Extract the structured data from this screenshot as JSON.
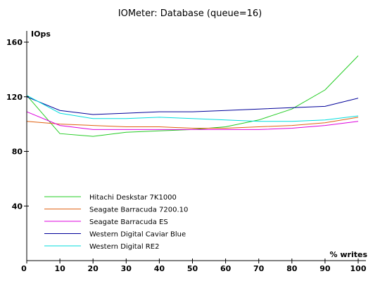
{
  "chart_data": {
    "type": "line",
    "title": "IOMeter: Database (queue=16)",
    "xlabel": "% writes",
    "ylabel": "IOps",
    "x": [
      0,
      10,
      20,
      30,
      40,
      50,
      60,
      70,
      80,
      90,
      100
    ],
    "xlim": [
      0,
      100
    ],
    "ylim": [
      0,
      160
    ],
    "xticks": [
      "0",
      "10",
      "20",
      "30",
      "40",
      "50",
      "60",
      "70",
      "80",
      "90",
      "100"
    ],
    "yticks": [
      {
        "value": 160,
        "label": "160"
      },
      {
        "value": 120,
        "label": "120"
      },
      {
        "value": 80,
        "label": "80"
      },
      {
        "value": 40,
        "label": "40"
      }
    ],
    "grid": false,
    "legend_position": "bottom-left",
    "series": [
      {
        "name": "Hitachi Deskstar 7K1000",
        "color": "#22cc22",
        "values": [
          121,
          93,
          91,
          94,
          95,
          96,
          98,
          103,
          111,
          125,
          150
        ]
      },
      {
        "name": "Seagate Barracuda 7200.10",
        "color": "#e06010",
        "values": [
          102,
          100,
          99,
          98,
          98,
          97,
          97,
          98,
          99,
          101,
          105
        ]
      },
      {
        "name": "Seagate Barracuda ES",
        "color": "#dd00dd",
        "values": [
          109,
          99,
          96,
          96,
          96,
          96,
          96,
          96,
          97,
          99,
          102
        ]
      },
      {
        "name": "Western Digital Caviar Blue",
        "color": "#000099",
        "values": [
          120,
          110,
          107,
          108,
          109,
          109,
          110,
          111,
          112,
          113,
          119
        ]
      },
      {
        "name": "Western Digital RE2",
        "color": "#00dddd",
        "values": [
          121,
          108,
          104,
          104,
          105,
          104,
          103,
          102,
          102,
          103,
          106
        ]
      }
    ]
  }
}
